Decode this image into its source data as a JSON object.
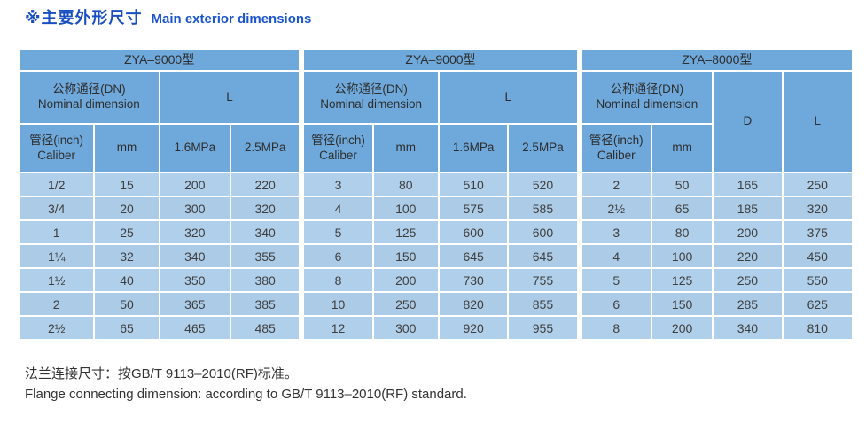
{
  "title": {
    "zh": "※主要外形尺寸",
    "en": "Main exterior dimensions"
  },
  "table": {
    "sections": [
      {
        "model": "ZYA–9000型",
        "nominal_zh": "公称通径(DN)",
        "nominal_en": "Nominal dimension",
        "l_label": "L",
        "caliber_zh": "管径(inch)",
        "caliber_en": "Caliber",
        "mm_label": "mm",
        "p16_label": "1.6MPa",
        "p25_label": "2.5MPa"
      },
      {
        "model": "ZYA–9000型",
        "nominal_zh": "公称通径(DN)",
        "nominal_en": "Nominal dimension",
        "l_label": "L",
        "caliber_zh": "管径(inch)",
        "caliber_en": "Caliber",
        "mm_label": "mm",
        "p16_label": "1.6MPa",
        "p25_label": "2.5MPa"
      },
      {
        "model": "ZYA–8000型",
        "nominal_zh": "公称通径(DN)",
        "nominal_en": "Nominal dimension",
        "caliber_zh": "管径(inch)",
        "caliber_en": "Caliber",
        "mm_label": "mm",
        "d_label": "D",
        "l_label": "L"
      }
    ],
    "rows": [
      [
        "1/2",
        "15",
        "200",
        "220",
        "3",
        "80",
        "510",
        "520",
        "2",
        "50",
        "165",
        "250"
      ],
      [
        "3/4",
        "20",
        "300",
        "320",
        "4",
        "100",
        "575",
        "585",
        "2½",
        "65",
        "185",
        "320"
      ],
      [
        "1",
        "25",
        "320",
        "340",
        "5",
        "125",
        "600",
        "600",
        "3",
        "80",
        "200",
        "375"
      ],
      [
        "1¼",
        "32",
        "340",
        "355",
        "6",
        "150",
        "645",
        "645",
        "4",
        "100",
        "220",
        "450"
      ],
      [
        "1½",
        "40",
        "350",
        "380",
        "8",
        "200",
        "730",
        "755",
        "5",
        "125",
        "250",
        "550"
      ],
      [
        "2",
        "50",
        "365",
        "385",
        "10",
        "250",
        "820",
        "855",
        "6",
        "150",
        "285",
        "625"
      ],
      [
        "2½",
        "65",
        "465",
        "485",
        "12",
        "300",
        "920",
        "955",
        "8",
        "200",
        "340",
        "810"
      ]
    ]
  },
  "footnote": {
    "zh": "法兰连接尺寸：按GB/T 9113–2010(RF)标准。",
    "en": "Flange connecting dimension:  according to GB/T 9113–2010(RF) standard."
  },
  "colors": {
    "header_blue": "#6fa9db",
    "row_blue_light": "#b0cfea",
    "row_blue_dark": "#abcbe7",
    "title_blue": "#1a4fc2",
    "grid_white": "#ffffff",
    "text_dark": "#3e3e3e"
  }
}
